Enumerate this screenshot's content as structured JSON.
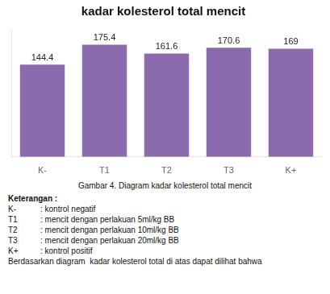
{
  "chart_data": {
    "type": "bar",
    "title": "kadar kolesterol total mencit",
    "categories": [
      "K-",
      "T1",
      "T2",
      "T3",
      "K+"
    ],
    "values": [
      144.4,
      175.4,
      161.6,
      170.6,
      169
    ],
    "color": "#8b6aad",
    "ylim": [
      0,
      200
    ],
    "yticks": [],
    "grid": false,
    "data_labels": true,
    "tick_labels": "x",
    "annotations": [
      "Gambar 4. Diagram kadar kolesterol total mencit",
      "Keterangan :",
      [
        "K-",
        ": kontrol negatif"
      ],
      [
        "T1",
        ": mencit dengan perlakuan 5ml/kg BB"
      ],
      [
        "T2",
        ": mencit dengan perlakuan 10ml/kg BB"
      ],
      [
        "T3",
        ": mencit dengan perlakuan 20ml/kg BB"
      ],
      [
        "K+",
        ": kontrol positif"
      ],
      "Berdasarkan diagram  kadar kolesterol total di atas dapat dilihat bahwa"
    ]
  }
}
